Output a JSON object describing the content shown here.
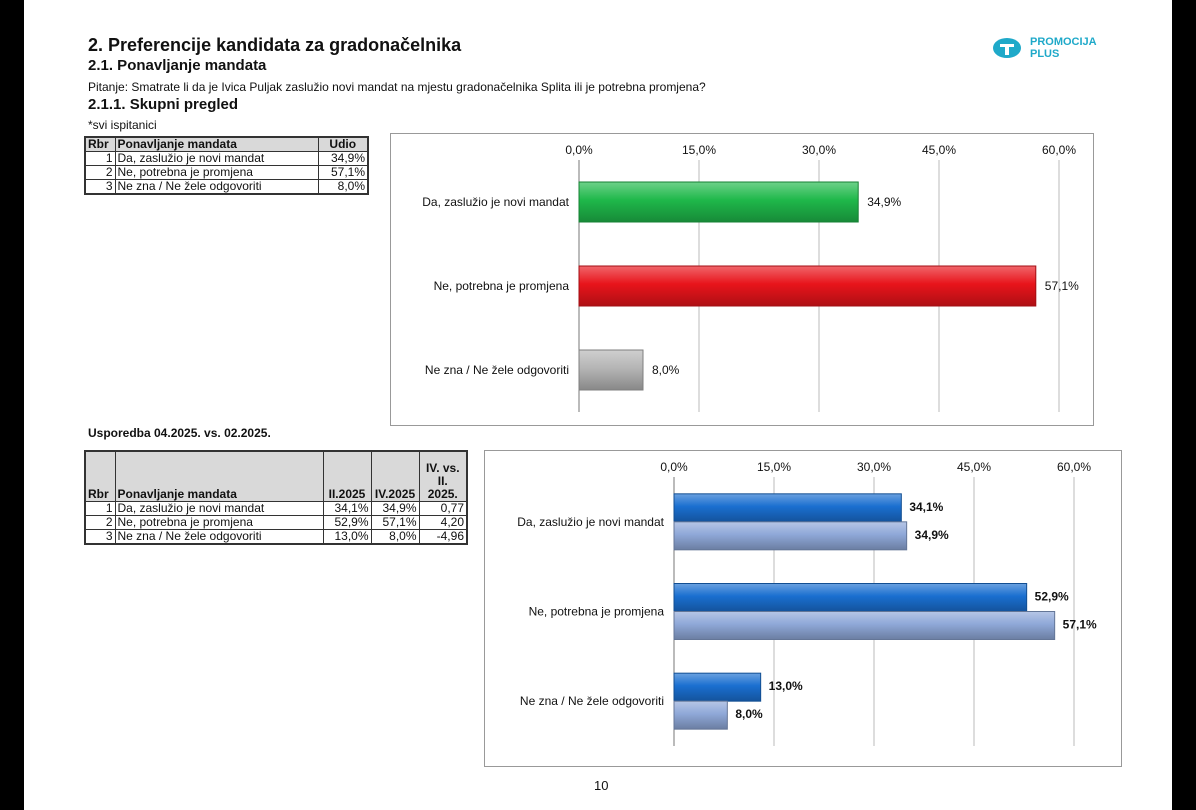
{
  "header": {
    "title": "2. Preferencije kandidata za gradonačelnika",
    "subtitle": "2.1. Ponavljanje mandata",
    "question": "Pitanje: Smatrate li da je Ivica Puljak zaslužio novi mandat na mjestu gradonačelnika Splita ili je potrebna promjena?",
    "section": "2.1.1. Skupni pregled",
    "note": "*svi ispitanici"
  },
  "logo": {
    "line1": "PROMOCIJA",
    "line2": "PLUS"
  },
  "table1": {
    "headers": [
      "Rbr",
      "Ponavljanje mandata",
      "Udio"
    ],
    "rows": [
      [
        "1",
        "Da, zaslužio je novi mandat",
        "34,9%"
      ],
      [
        "2",
        "Ne, potrebna je promjena",
        "57,1%"
      ],
      [
        "3",
        "Ne zna / Ne žele odgovoriti",
        "8,0%"
      ]
    ]
  },
  "comparison_title": "Usporedba 04.2025. vs. 02.2025.",
  "table2": {
    "headers": [
      "Rbr",
      "Ponavljanje mandata",
      "II.2025",
      "IV.2025",
      "IV. vs. II. 2025."
    ],
    "rows": [
      [
        "1",
        "Da, zaslužio je novi mandat",
        "34,1%",
        "34,9%",
        "0,77"
      ],
      [
        "2",
        "Ne, potrebna je promjena",
        "52,9%",
        "57,1%",
        "4,20"
      ],
      [
        "3",
        "Ne zna / Ne žele odgovoriti",
        "13,0%",
        "8,0%",
        "-4,96"
      ]
    ]
  },
  "page_number": "10",
  "chart_data": [
    {
      "type": "bar",
      "orientation": "horizontal",
      "categories": [
        "Da, zaslužio je novi mandat",
        "Ne, potrebna je promjena",
        "Ne zna / Ne žele odgovoriti"
      ],
      "values": [
        34.9,
        57.1,
        8.0
      ],
      "value_labels": [
        "34,9%",
        "57,1%",
        "8,0%"
      ],
      "colors": [
        "#1fb84a",
        "#e8141b",
        "#b5b5b5"
      ],
      "xlim": [
        0,
        60
      ],
      "ticks": [
        "0,0%",
        "15,0%",
        "30,0%",
        "45,0%",
        "60,0%"
      ],
      "tick_values": [
        0,
        15,
        30,
        45,
        60
      ],
      "axis_position": "top",
      "grid": true
    },
    {
      "type": "bar",
      "orientation": "horizontal",
      "categories": [
        "Da, zaslužio je novi mandat",
        "Ne, potrebna je promjena",
        "Ne zna / Ne žele odgovoriti"
      ],
      "series": [
        {
          "name": "II.2025",
          "values": [
            34.1,
            52.9,
            13.0
          ],
          "value_labels": [
            "34,1%",
            "52,9%",
            "13,0%"
          ],
          "color": "#1a6fd0"
        },
        {
          "name": "IV.2025",
          "values": [
            34.9,
            57.1,
            8.0
          ],
          "value_labels": [
            "34,9%",
            "57,1%",
            "8,0%"
          ],
          "color": "#8fa8d8"
        }
      ],
      "xlim": [
        0,
        60
      ],
      "ticks": [
        "0,0%",
        "15,0%",
        "30,0%",
        "45,0%",
        "60,0%"
      ],
      "tick_values": [
        0,
        15,
        30,
        45,
        60
      ],
      "axis_position": "top",
      "grid": true
    }
  ]
}
